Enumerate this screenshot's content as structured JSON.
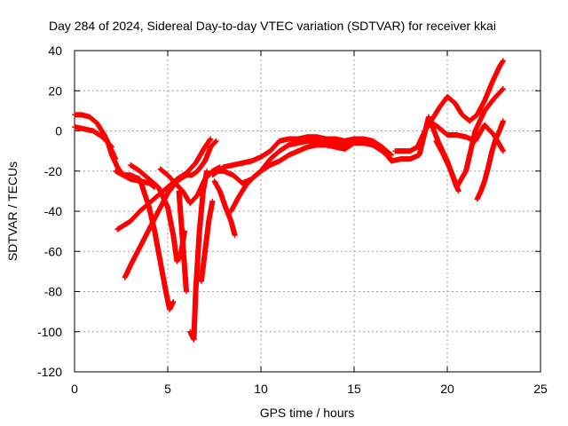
{
  "chart_data": {
    "type": "scatter",
    "title": "Day 284 of 2024, Sidereal Day-to-day VTEC variation (SDTVAR) for receiver kkai",
    "xlabel": "GPS time / hours",
    "ylabel": "SDTVAR / TECUs",
    "xlim": [
      0,
      25
    ],
    "ylim": [
      -120,
      40
    ],
    "xticks": [
      0,
      5,
      10,
      15,
      20,
      25
    ],
    "yticks": [
      -120,
      -100,
      -80,
      -60,
      -40,
      -20,
      0,
      20,
      40
    ],
    "grid": true,
    "marker": "+",
    "marker_color": "#ff0000",
    "series": [
      {
        "x": [
          0.0,
          0.4,
          0.8,
          1.2,
          1.6,
          2.0,
          2.2
        ],
        "y": [
          8,
          8,
          7,
          4,
          -2,
          -10,
          -14
        ]
      },
      {
        "x": [
          0.0,
          0.5,
          1.0,
          1.5,
          2.0
        ],
        "y": [
          2,
          1,
          0,
          -3,
          -8
        ]
      },
      {
        "x": [
          1.8,
          2.0,
          2.3,
          2.6,
          3.0,
          3.5,
          4.0,
          4.3
        ],
        "y": [
          -6,
          -12,
          -18,
          -22,
          -24,
          -25,
          -26,
          -28
        ]
      },
      {
        "x": [
          2.2,
          2.6,
          3.0,
          3.5,
          4.0,
          4.3,
          4.6,
          4.9,
          5.1,
          5.3
        ],
        "y": [
          -20,
          -22,
          -22,
          -24,
          -38,
          -50,
          -65,
          -80,
          -89,
          -85
        ]
      },
      {
        "x": [
          3.0,
          3.5,
          4.0,
          4.5,
          5.0,
          5.3,
          5.5,
          5.7,
          5.9
        ],
        "y": [
          -17,
          -20,
          -24,
          -28,
          -38,
          -52,
          -65,
          -62,
          -50
        ]
      },
      {
        "x": [
          2.3,
          3.0,
          3.5,
          4.0,
          4.5,
          5.0,
          5.5,
          6.0,
          6.5,
          7.0,
          7.3
        ],
        "y": [
          -49,
          -45,
          -40,
          -36,
          -32,
          -28,
          -24,
          -21,
          -16,
          -8,
          -4
        ]
      },
      {
        "x": [
          2.7,
          3.0,
          3.5,
          4.0,
          4.5,
          5.0,
          5.5,
          6.0,
          6.3,
          6.6,
          7.0,
          7.3,
          7.6
        ],
        "y": [
          -73,
          -67,
          -58,
          -49,
          -40,
          -31,
          -25,
          -22,
          -22,
          -20,
          -15,
          -8,
          -5
        ]
      },
      {
        "x": [
          4.6,
          5.0,
          5.4,
          5.8,
          6.2,
          6.6,
          7.0,
          7.4,
          7.8
        ],
        "y": [
          -19,
          -22,
          -26,
          -30,
          -36,
          -32,
          -24,
          -20,
          -18
        ]
      },
      {
        "x": [
          5.6,
          5.8,
          6.0
        ],
        "y": [
          -30,
          -55,
          -80
        ]
      },
      {
        "x": [
          6.2,
          6.4,
          6.5,
          6.7,
          6.9,
          7.1
        ],
        "y": [
          -100,
          -104,
          -80,
          -50,
          -30,
          -20
        ]
      },
      {
        "x": [
          6.8,
          7.0,
          7.2,
          7.4
        ],
        "y": [
          -75,
          -60,
          -45,
          -35
        ]
      },
      {
        "x": [
          7.5,
          7.8,
          8.1,
          8.4,
          8.6
        ],
        "y": [
          -25,
          -30,
          -38,
          -45,
          -52
        ]
      },
      {
        "x": [
          7.4,
          8.0,
          8.5,
          9.0,
          9.5,
          10.0,
          10.5,
          11.0,
          11.5,
          12.0,
          12.5,
          13.0,
          13.5,
          14.0,
          14.5,
          15.0,
          15.5,
          16.0,
          16.5,
          17.0
        ],
        "y": [
          -22,
          -18,
          -17,
          -16,
          -15,
          -13,
          -10,
          -5,
          -4,
          -4,
          -3,
          -3,
          -4,
          -4,
          -5,
          -4,
          -4,
          -5,
          -8,
          -12
        ]
      },
      {
        "x": [
          8.4,
          8.8,
          9.2,
          9.6,
          10.0,
          10.5,
          11.0,
          11.5,
          12.0,
          12.5,
          13.0,
          13.5,
          14.0,
          14.5,
          15.0,
          15.5,
          16.0,
          16.5,
          17.0
        ],
        "y": [
          -40,
          -33,
          -27,
          -23,
          -20,
          -17,
          -15,
          -12,
          -10,
          -8,
          -7,
          -7,
          -8,
          -9,
          -6,
          -6,
          -6,
          -9,
          -15
        ]
      },
      {
        "x": [
          7.6,
          8.0,
          8.5,
          9.0,
          9.5,
          10.0,
          10.5,
          11.0,
          11.5,
          12.0,
          12.5,
          13.0,
          13.5,
          14.0,
          14.5,
          15.0,
          15.5,
          16.0,
          16.5,
          17.0
        ],
        "y": [
          -20,
          -20,
          -22,
          -26,
          -24,
          -20,
          -14,
          -10,
          -7,
          -6,
          -5,
          -5,
          -6,
          -6,
          -7,
          -6,
          -6,
          -7,
          -10,
          -14
        ]
      },
      {
        "x": [
          17.2,
          17.6,
          18.0,
          18.4,
          18.8,
          19.2,
          19.6,
          20.0,
          20.4,
          20.8,
          21.2,
          21.6,
          22.0,
          22.4,
          22.8,
          23.0
        ],
        "y": [
          -10,
          -10,
          -10,
          -8,
          0,
          6,
          12,
          17,
          14,
          8,
          5,
          8,
          15,
          24,
          32,
          35
        ]
      },
      {
        "x": [
          17.0,
          17.5,
          18.0,
          18.5,
          19.0,
          19.5,
          20.0,
          20.5,
          21.0,
          21.5,
          22.0,
          22.5,
          23.0
        ],
        "y": [
          -15,
          -14,
          -14,
          -12,
          7,
          -5,
          -15,
          -28,
          -20,
          0,
          10,
          16,
          21
        ]
      },
      {
        "x": [
          19.0,
          19.5,
          20.0,
          20.5,
          21.0,
          21.5,
          22.0,
          22.5,
          23.0
        ],
        "y": [
          5,
          2,
          -2,
          -2,
          -3,
          -5,
          3,
          -2,
          -10
        ]
      },
      {
        "x": [
          19.4,
          19.8,
          20.2,
          20.6
        ],
        "y": [
          -5,
          -12,
          -20,
          -30
        ]
      },
      {
        "x": [
          21.6,
          21.8,
          22.0,
          22.2,
          22.4,
          22.6,
          22.8,
          23.0
        ],
        "y": [
          -34,
          -30,
          -25,
          -18,
          -10,
          -4,
          0,
          5
        ]
      }
    ]
  }
}
